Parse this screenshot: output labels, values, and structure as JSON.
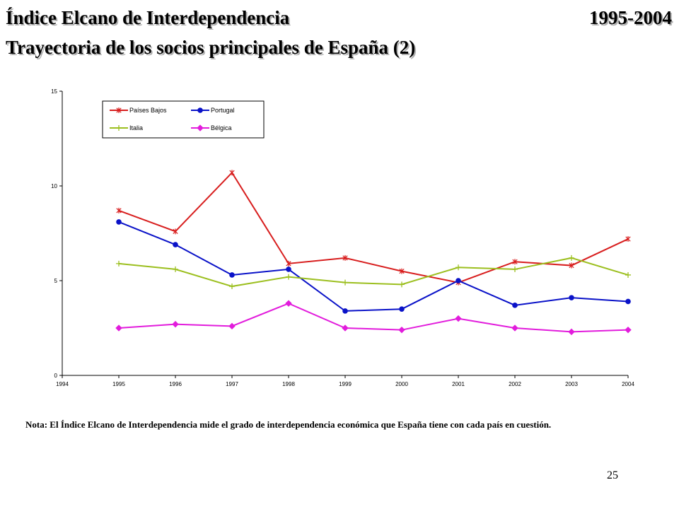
{
  "header": {
    "title": "Índice Elcano de Interdependencia",
    "years": "1995-2004",
    "subtitle": "Trayectoria de los socios principales de España (2)"
  },
  "footer": {
    "note": "Nota: El Índice Elcano de Interdependencia mide el grado de interdependencia económica que España tiene con cada país en cuestión.",
    "page_number": "25"
  },
  "chart_data": {
    "type": "line",
    "title": "",
    "xlabel": "",
    "ylabel": "",
    "x": [
      "1994",
      "1995",
      "1996",
      "1997",
      "1998",
      "1999",
      "2000",
      "2001",
      "2002",
      "2003",
      "2004"
    ],
    "xlim": [
      1994,
      2004
    ],
    "ylim": [
      0,
      15
    ],
    "y_ticks": [
      0,
      5,
      10,
      15
    ],
    "grid": false,
    "legend_position": "top-left",
    "series": [
      {
        "name": "Países Bajos",
        "color": "#d81e1e",
        "marker": "asterisk",
        "x": [
          1995,
          1996,
          1997,
          1998,
          1999,
          2000,
          2001,
          2002,
          2003,
          2004
        ],
        "values": [
          8.7,
          7.6,
          10.7,
          5.9,
          6.2,
          5.5,
          4.9,
          6.0,
          5.8,
          7.2
        ]
      },
      {
        "name": "Portugal",
        "color": "#0a12c8",
        "marker": "circle",
        "x": [
          1995,
          1996,
          1997,
          1998,
          1999,
          2000,
          2001,
          2002,
          2003,
          2004
        ],
        "values": [
          8.1,
          6.9,
          5.3,
          5.6,
          3.4,
          3.5,
          5.0,
          3.7,
          4.1,
          3.9
        ]
      },
      {
        "name": "Italia",
        "color": "#9cbf1f",
        "marker": "plus",
        "x": [
          1995,
          1996,
          1997,
          1998,
          1999,
          2000,
          2001,
          2002,
          2003,
          2004
        ],
        "values": [
          5.9,
          5.6,
          4.7,
          5.2,
          4.9,
          4.8,
          5.7,
          5.6,
          6.2,
          5.3
        ]
      },
      {
        "name": "Bélgica",
        "color": "#e21cdc",
        "marker": "diamond",
        "x": [
          1995,
          1996,
          1997,
          1998,
          1999,
          2000,
          2001,
          2002,
          2003,
          2004
        ],
        "values": [
          2.5,
          2.7,
          2.6,
          3.8,
          2.5,
          2.4,
          3.0,
          2.5,
          2.3,
          2.4
        ]
      }
    ]
  }
}
